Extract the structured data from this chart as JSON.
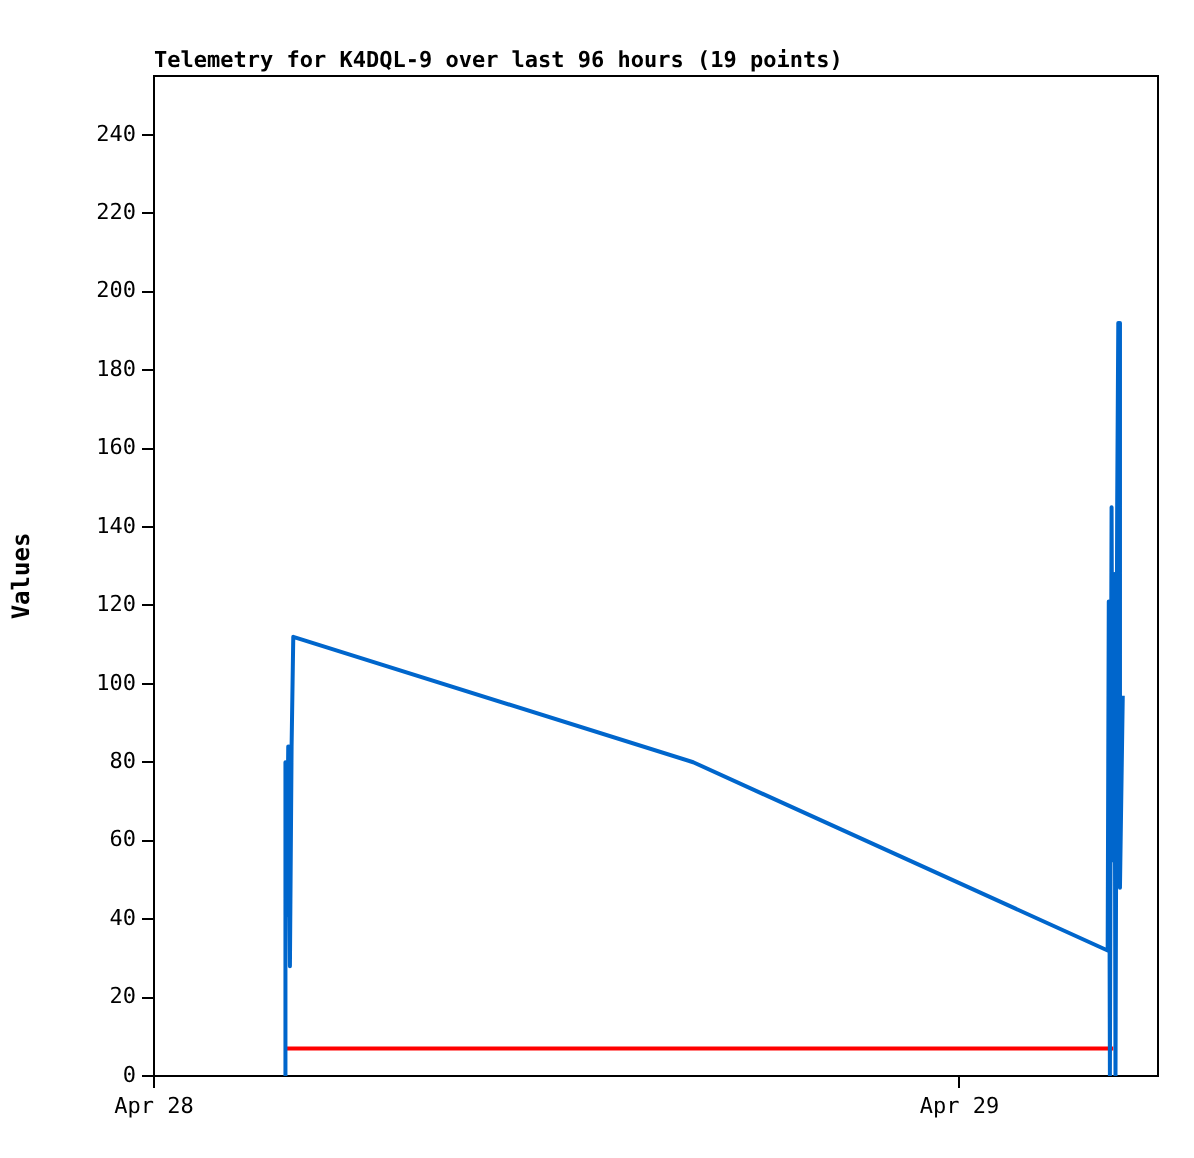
{
  "chart_data": {
    "type": "line",
    "title": "Telemetry for K4DQL-9 over last 96 hours (19 points)",
    "ylabel": "Values",
    "series": [
      {
        "color": "#0066cc",
        "x": [
          "--04-28T03:54",
          "--04-28T03:55",
          "--04-28T03:57",
          "--04-28T04:00",
          "--04-28T04:03",
          "--04-28T04:06",
          "--04-28T04:09",
          "--04-28T16:04",
          "--04-29T04:25",
          "--04-29T04:27",
          "--04-29T04:29",
          "--04-29T04:32",
          "--04-29T04:34",
          "--04-29T04:37",
          "--04-29T04:39",
          "--04-29T04:42",
          "--04-29T04:44",
          "--04-29T04:47",
          "--04-29T04:52"
        ],
        "values": [
          0,
          80,
          41,
          84,
          28,
          84,
          112,
          80,
          32,
          121,
          0,
          145,
          55,
          128,
          0,
          145,
          192,
          48,
          97
        ]
      },
      {
        "color": "#ff0000",
        "x": [
          "--04-28T03:56",
          "--04-29T04:35"
        ],
        "values": [
          7,
          7
        ]
      }
    ],
    "xlim": [
      "--04-28T00:00",
      "--04-29T05:55"
    ],
    "xticks": [
      {
        "value": "--04-28",
        "label": "Apr 28"
      },
      {
        "value": "--04-29",
        "label": "Apr 29"
      }
    ],
    "ylim": [
      0,
      255
    ],
    "yticks": [
      0,
      20,
      40,
      60,
      80,
      100,
      120,
      140,
      160,
      180,
      200,
      220,
      240
    ],
    "grid": false,
    "legend": false,
    "marker": "none",
    "line_style": "solid"
  }
}
